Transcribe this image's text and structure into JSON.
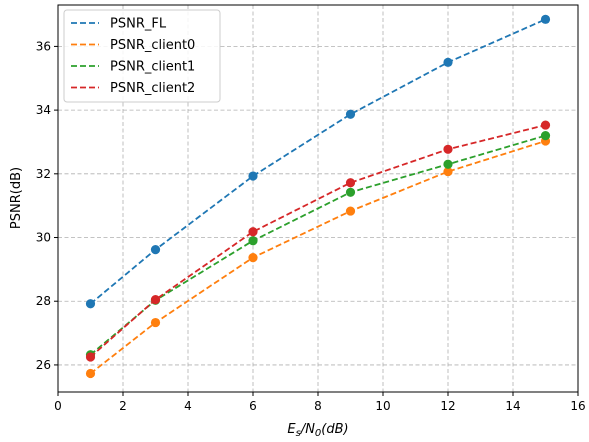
{
  "chart_data": {
    "type": "line",
    "title": "",
    "xlabel_parts": {
      "e": "E",
      "s": "s",
      "slash": "/N",
      "zero": "0",
      "tail": "(dB)"
    },
    "ylabel": "PSNR(dB)",
    "xlim": [
      0,
      16
    ],
    "ylim": [
      25.15,
      37.3
    ],
    "xticks": [
      0,
      2,
      4,
      6,
      8,
      10,
      12,
      14,
      16
    ],
    "yticks": [
      26,
      28,
      30,
      32,
      34,
      36
    ],
    "grid": true,
    "grid_style": "dashed",
    "legend_position": "top-left",
    "x": [
      1,
      3,
      6,
      9,
      12,
      15
    ],
    "series": [
      {
        "name": "PSNR_FL",
        "color": "#1f77b4",
        "values": [
          27.92,
          29.62,
          31.93,
          33.87,
          35.5,
          36.85
        ]
      },
      {
        "name": "PSNR_client0",
        "color": "#ff7f0e",
        "values": [
          25.73,
          27.33,
          29.37,
          30.83,
          32.07,
          33.03
        ]
      },
      {
        "name": "PSNR_client1",
        "color": "#2ca02c",
        "values": [
          26.32,
          28.03,
          29.9,
          31.42,
          32.3,
          33.2
        ]
      },
      {
        "name": "PSNR_client2",
        "color": "#d62728",
        "values": [
          26.25,
          28.05,
          30.18,
          31.72,
          32.77,
          33.53
        ]
      }
    ]
  }
}
